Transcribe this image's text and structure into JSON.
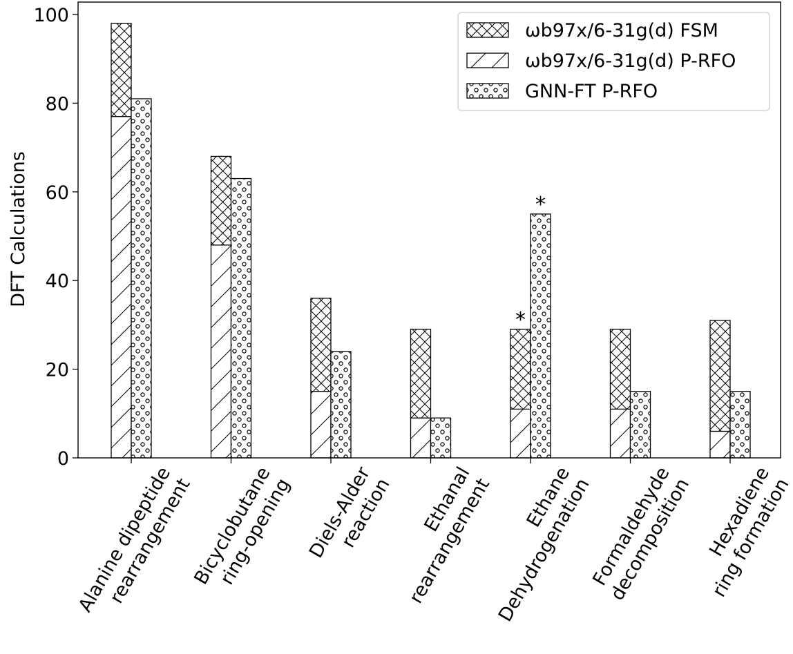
{
  "chart_data": {
    "type": "bar",
    "ylabel": "DFT Calculations",
    "ylim": [
      0,
      100
    ],
    "yticks": [
      0,
      20,
      40,
      60,
      80,
      100
    ],
    "categories": [
      [
        "Alanine dipeptide",
        "rearrangement"
      ],
      [
        "Bicyclobutane",
        "ring-opening"
      ],
      [
        "Diels-Alder",
        "reaction"
      ],
      [
        "Ethanal",
        "rearrangement"
      ],
      [
        "Ethane",
        "Dehydrogenation"
      ],
      [
        "Formaldehyde",
        "decomposition"
      ],
      [
        "Hexadiene",
        "ring formation"
      ]
    ],
    "series": [
      {
        "name": "ωb97x/6-31g(d) FSM",
        "hatch": "crosshatch",
        "values": [
          21,
          20,
          21,
          20,
          18,
          18,
          25
        ]
      },
      {
        "name": "ωb97x/6-31g(d) P-RFO",
        "hatch": "diagonal",
        "values": [
          77,
          48,
          15,
          9,
          11,
          11,
          6
        ]
      },
      {
        "name": "GNN-FT P-RFO",
        "hatch": "dots",
        "values": [
          81,
          63,
          24,
          9,
          55,
          15,
          15
        ]
      }
    ],
    "stacks": [
      {
        "position": "left",
        "series": [
          1,
          0
        ]
      },
      {
        "position": "right",
        "series": [
          2
        ]
      }
    ],
    "annotations": [
      {
        "text": "*",
        "category": 4,
        "position": "left"
      },
      {
        "text": "*",
        "category": 4,
        "position": "right"
      }
    ],
    "legend": {
      "placement": "top-right"
    },
    "grid": false
  }
}
